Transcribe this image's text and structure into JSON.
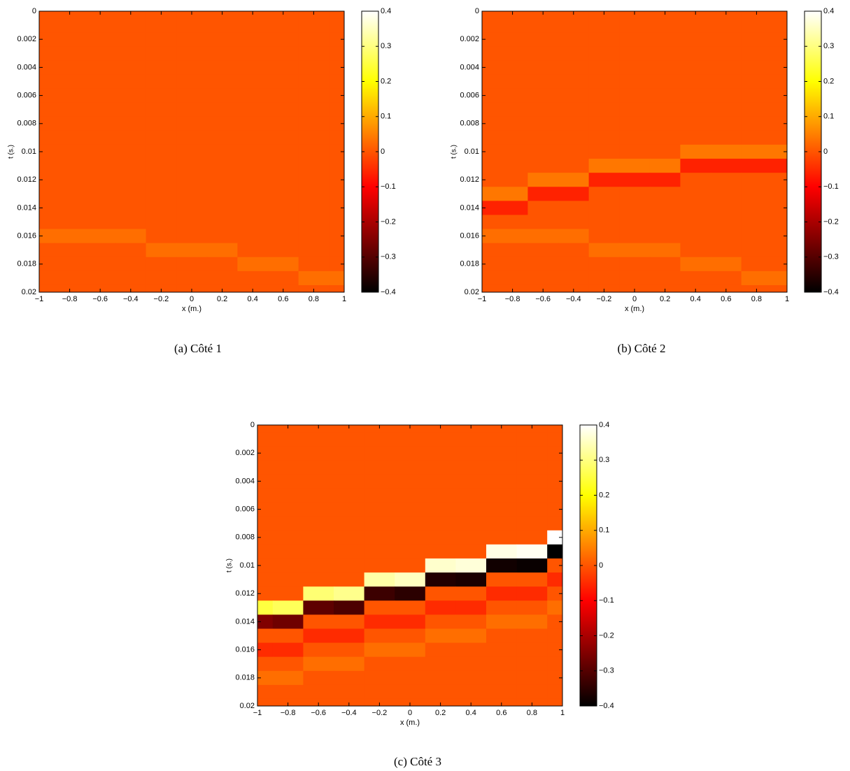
{
  "chart_data": [
    {
      "type": "heatmap",
      "caption": "(a) Côté 1",
      "xlabel": "x (m.)",
      "ylabel": "t (s.)",
      "colormap": "hot",
      "y_inverted": true,
      "x": [
        -1,
        -0.8,
        -0.6,
        -0.4,
        -0.2,
        0,
        0.2,
        0.4,
        0.6,
        0.8,
        1
      ],
      "y": [
        0,
        0.001,
        0.002,
        0.003,
        0.004,
        0.005,
        0.006,
        0.007,
        0.008,
        0.009,
        0.01,
        0.011,
        0.012,
        0.013,
        0.014,
        0.015,
        0.016,
        0.017,
        0.018,
        0.019,
        0.02
      ],
      "z": [
        [
          0,
          0,
          0,
          0,
          0,
          0,
          0,
          0,
          0,
          0,
          0
        ],
        [
          0,
          0,
          0,
          0,
          0,
          0,
          0,
          0,
          0,
          0,
          0
        ],
        [
          0,
          0,
          0,
          0,
          0,
          0,
          0,
          0,
          0,
          0,
          0
        ],
        [
          0,
          0,
          0,
          0,
          0,
          0,
          0,
          0,
          0,
          0,
          0
        ],
        [
          0,
          0,
          0,
          0,
          0,
          0,
          0,
          0,
          0,
          0,
          0
        ],
        [
          0,
          0,
          0,
          0,
          0,
          0,
          0,
          0,
          0,
          0,
          0
        ],
        [
          0,
          0,
          0,
          0,
          0,
          0,
          0,
          0,
          0,
          0,
          0
        ],
        [
          0,
          0,
          0,
          0,
          0,
          0,
          0,
          0,
          0,
          0,
          0
        ],
        [
          0,
          0,
          0,
          0,
          0,
          0,
          0,
          0,
          0,
          0,
          0
        ],
        [
          0,
          0,
          0,
          0,
          0,
          0,
          0,
          0,
          0,
          0,
          0
        ],
        [
          0,
          0,
          0,
          0,
          0,
          0,
          0,
          0,
          0,
          0,
          0
        ],
        [
          0,
          0,
          0,
          0,
          0,
          0,
          0,
          0,
          0,
          0,
          0
        ],
        [
          0,
          0,
          0,
          0,
          0,
          0,
          0,
          0,
          0,
          0,
          0
        ],
        [
          0,
          0,
          0,
          0,
          0,
          0,
          0,
          0,
          0,
          0,
          0
        ],
        [
          0,
          0,
          0,
          0,
          0,
          0,
          0,
          0,
          0,
          0,
          0
        ],
        [
          0,
          0,
          0,
          0,
          0,
          0,
          0,
          0,
          0,
          0,
          0
        ],
        [
          0.03,
          0.03,
          0.03,
          0.03,
          0,
          0,
          0,
          0,
          0,
          0,
          0
        ],
        [
          0,
          0,
          0,
          0,
          0.03,
          0.03,
          0.03,
          0,
          0,
          0,
          0
        ],
        [
          0,
          0,
          0,
          0,
          0,
          0,
          0,
          0.03,
          0.03,
          0,
          0
        ],
        [
          0,
          0,
          0,
          0,
          0,
          0,
          0,
          0,
          0,
          0.03,
          0.03
        ],
        [
          0,
          0,
          0,
          0,
          0,
          0,
          0,
          0,
          0,
          0,
          0
        ]
      ],
      "xlim": [
        -1,
        1
      ],
      "ylim": [
        0,
        0.02
      ],
      "clim": [
        -0.4,
        0.4
      ],
      "xticks": [
        {
          "value": -1,
          "label": "−1"
        },
        {
          "value": -0.8,
          "label": "−0.8"
        },
        {
          "value": -0.6,
          "label": "−0.6"
        },
        {
          "value": -0.4,
          "label": "−0.4"
        },
        {
          "value": -0.2,
          "label": "−0.2"
        },
        0,
        0.2,
        0.4,
        0.6,
        0.8,
        1
      ],
      "yticks": [
        0,
        0.002,
        0.004,
        0.006,
        0.008,
        0.01,
        0.012,
        0.014,
        0.016,
        0.018,
        0.02
      ],
      "cticks": [
        {
          "value": -0.4,
          "label": "−0.4"
        },
        {
          "value": -0.3,
          "label": "−0.3"
        },
        {
          "value": -0.2,
          "label": "−0.2"
        },
        {
          "value": -0.1,
          "label": "−0.1"
        },
        0,
        0.1,
        0.2,
        0.3,
        0.4
      ]
    },
    {
      "type": "heatmap",
      "caption": "(b) Côté 2",
      "xlabel": "x (m.)",
      "ylabel": "t (s.)",
      "colormap": "hot",
      "y_inverted": true,
      "x": [
        -1,
        -0.8,
        -0.6,
        -0.4,
        -0.2,
        0,
        0.2,
        0.4,
        0.6,
        0.8,
        1
      ],
      "y": [
        0,
        0.001,
        0.002,
        0.003,
        0.004,
        0.005,
        0.006,
        0.007,
        0.008,
        0.009,
        0.01,
        0.011,
        0.012,
        0.013,
        0.014,
        0.015,
        0.016,
        0.017,
        0.018,
        0.019,
        0.02
      ],
      "z": [
        [
          0,
          0,
          0,
          0,
          0,
          0,
          0,
          0,
          0,
          0,
          0
        ],
        [
          0,
          0,
          0,
          0,
          0,
          0,
          0,
          0,
          0,
          0,
          0
        ],
        [
          0,
          0,
          0,
          0,
          0,
          0,
          0,
          0,
          0,
          0,
          0
        ],
        [
          0,
          0,
          0,
          0,
          0,
          0,
          0,
          0,
          0,
          0,
          0
        ],
        [
          0,
          0,
          0,
          0,
          0,
          0,
          0,
          0,
          0,
          0,
          0
        ],
        [
          0,
          0,
          0,
          0,
          0,
          0,
          0,
          0,
          0,
          0,
          0
        ],
        [
          0,
          0,
          0,
          0,
          0,
          0,
          0,
          0,
          0,
          0,
          0
        ],
        [
          0,
          0,
          0,
          0,
          0,
          0,
          0,
          0,
          0,
          0,
          0
        ],
        [
          0,
          0,
          0,
          0,
          0,
          0,
          0,
          0,
          0,
          0,
          0
        ],
        [
          0,
          0,
          0,
          0,
          0,
          0,
          0,
          0,
          0,
          0,
          0
        ],
        [
          0,
          0,
          0,
          0,
          0,
          0,
          0,
          0.04,
          0.04,
          0.04,
          0.04
        ],
        [
          0,
          0,
          0,
          0,
          0.04,
          0.04,
          0.04,
          -0.06,
          -0.06,
          -0.06,
          -0.06
        ],
        [
          0,
          0,
          0.04,
          0.04,
          -0.06,
          -0.06,
          -0.06,
          0,
          0,
          0,
          0
        ],
        [
          0.04,
          0.04,
          -0.06,
          -0.06,
          0,
          0,
          0,
          0,
          0,
          0,
          0
        ],
        [
          -0.06,
          -0.06,
          0,
          0,
          0,
          0,
          0,
          0,
          0,
          0,
          0
        ],
        [
          0,
          0,
          0,
          0,
          0,
          0,
          0,
          0,
          0,
          0,
          0
        ],
        [
          0.03,
          0.03,
          0.03,
          0.03,
          0,
          0,
          0,
          0,
          0,
          0,
          0
        ],
        [
          0,
          0,
          0,
          0,
          0.03,
          0.03,
          0.03,
          0,
          0,
          0,
          0
        ],
        [
          0,
          0,
          0,
          0,
          0,
          0,
          0,
          0.03,
          0.03,
          0,
          0
        ],
        [
          0,
          0,
          0,
          0,
          0,
          0,
          0,
          0,
          0,
          0.03,
          0.03
        ],
        [
          0,
          0,
          0,
          0,
          0,
          0,
          0,
          0,
          0,
          0,
          0
        ]
      ],
      "xlim": [
        -1,
        1
      ],
      "ylim": [
        0,
        0.02
      ],
      "clim": [
        -0.4,
        0.4
      ],
      "xticks": [
        {
          "value": -1,
          "label": "−1"
        },
        {
          "value": -0.8,
          "label": "−0.8"
        },
        {
          "value": -0.6,
          "label": "−0.6"
        },
        {
          "value": -0.4,
          "label": "−0.4"
        },
        {
          "value": -0.2,
          "label": "−0.2"
        },
        0,
        0.2,
        0.4,
        0.6,
        0.8,
        1
      ],
      "yticks": [
        0,
        0.002,
        0.004,
        0.006,
        0.008,
        0.01,
        0.012,
        0.014,
        0.016,
        0.018,
        0.02
      ],
      "cticks": [
        {
          "value": -0.4,
          "label": "−0.4"
        },
        {
          "value": -0.3,
          "label": "−0.3"
        },
        {
          "value": -0.2,
          "label": "−0.2"
        },
        {
          "value": -0.1,
          "label": "−0.1"
        },
        0,
        0.1,
        0.2,
        0.3,
        0.4
      ]
    },
    {
      "type": "heatmap",
      "caption": "(c) Côté 3",
      "xlabel": "x (m.)",
      "ylabel": "t (s.)",
      "colormap": "hot",
      "y_inverted": true,
      "x": [
        -1,
        -0.8,
        -0.6,
        -0.4,
        -0.2,
        0,
        0.2,
        0.4,
        0.6,
        0.8,
        1
      ],
      "y": [
        0,
        0.001,
        0.002,
        0.003,
        0.004,
        0.005,
        0.006,
        0.007,
        0.008,
        0.009,
        0.01,
        0.011,
        0.012,
        0.013,
        0.014,
        0.015,
        0.016,
        0.017,
        0.018,
        0.019,
        0.02
      ],
      "z": [
        [
          0,
          0,
          0,
          0,
          0,
          0,
          0,
          0,
          0,
          0,
          0
        ],
        [
          0,
          0,
          0,
          0,
          0,
          0,
          0,
          0,
          0,
          0,
          0
        ],
        [
          0,
          0,
          0,
          0,
          0,
          0,
          0,
          0,
          0,
          0,
          0
        ],
        [
          0,
          0,
          0,
          0,
          0,
          0,
          0,
          0,
          0,
          0,
          0
        ],
        [
          0,
          0,
          0,
          0,
          0,
          0,
          0,
          0,
          0,
          0,
          0
        ],
        [
          0,
          0,
          0,
          0,
          0,
          0,
          0,
          0,
          0,
          0,
          0
        ],
        [
          0,
          0,
          0,
          0,
          0,
          0,
          0,
          0,
          0,
          0,
          0
        ],
        [
          0,
          0,
          0,
          0,
          0,
          0,
          0,
          0,
          0,
          0,
          0
        ],
        [
          0,
          0,
          0,
          0,
          0,
          0,
          0,
          0,
          0,
          0,
          0.4
        ],
        [
          0,
          0,
          0,
          0,
          0,
          0,
          0,
          0,
          0.38,
          0.39,
          -0.4
        ],
        [
          0,
          0,
          0,
          0,
          0,
          0,
          0.36,
          0.37,
          -0.38,
          -0.39,
          0
        ],
        [
          0,
          0,
          0,
          0,
          0.33,
          0.35,
          -0.36,
          -0.37,
          0,
          0,
          -0.05
        ],
        [
          0,
          0,
          0.29,
          0.31,
          -0.33,
          -0.35,
          0,
          0,
          -0.05,
          -0.05,
          0
        ],
        [
          0.25,
          0.27,
          -0.29,
          -0.31,
          0,
          0,
          -0.05,
          -0.05,
          0,
          0,
          0.03
        ],
        [
          -0.25,
          -0.27,
          0,
          0,
          -0.05,
          -0.05,
          0,
          0,
          0.03,
          0.03,
          0
        ],
        [
          0,
          0,
          -0.05,
          -0.05,
          0,
          0,
          0.03,
          0.03,
          0,
          0,
          0
        ],
        [
          -0.05,
          -0.05,
          0,
          0,
          0.03,
          0.03,
          0,
          0,
          0,
          0,
          0
        ],
        [
          0,
          0,
          0.03,
          0.03,
          0,
          0,
          0,
          0,
          0,
          0,
          0
        ],
        [
          0.03,
          0.03,
          0,
          0,
          0,
          0,
          0,
          0,
          0,
          0,
          0
        ],
        [
          0,
          0,
          0,
          0,
          0,
          0,
          0,
          0,
          0,
          0,
          0
        ],
        [
          0,
          0,
          0,
          0,
          0,
          0,
          0,
          0,
          0,
          0,
          0
        ]
      ],
      "xlim": [
        -1,
        1
      ],
      "ylim": [
        0,
        0.02
      ],
      "clim": [
        -0.4,
        0.4
      ],
      "xticks": [
        {
          "value": -1,
          "label": "−1"
        },
        {
          "value": -0.8,
          "label": "−0.8"
        },
        {
          "value": -0.6,
          "label": "−0.6"
        },
        {
          "value": -0.4,
          "label": "−0.4"
        },
        {
          "value": -0.2,
          "label": "−0.2"
        },
        0,
        0.2,
        0.4,
        0.6,
        0.8,
        1
      ],
      "yticks": [
        0,
        0.002,
        0.004,
        0.006,
        0.008,
        0.01,
        0.012,
        0.014,
        0.016,
        0.018,
        0.02
      ],
      "cticks": [
        {
          "value": -0.4,
          "label": "−0.4"
        },
        {
          "value": -0.3,
          "label": "−0.3"
        },
        {
          "value": -0.2,
          "label": "−0.2"
        },
        {
          "value": -0.1,
          "label": "−0.1"
        },
        0,
        0.1,
        0.2,
        0.3,
        0.4
      ]
    }
  ]
}
